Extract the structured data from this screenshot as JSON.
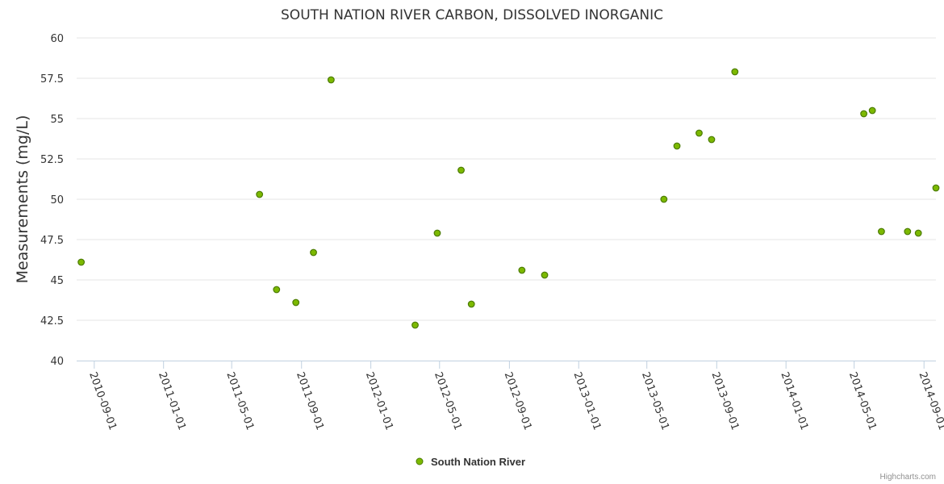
{
  "chart_data": {
    "type": "scatter",
    "title": "SOUTH NATION RIVER CARBON, DISSOLVED INORGANIC",
    "xlabel": "",
    "ylabel": "Measurements (mg/L)",
    "ylim": [
      40,
      60
    ],
    "yticks": [
      "40",
      "42.5",
      "45",
      "47.5",
      "50",
      "52.5",
      "55",
      "57.5",
      "60"
    ],
    "xlim": [
      "2010-08-01",
      "2014-09-22"
    ],
    "xticks": [
      "2010-09-01",
      "2011-01-01",
      "2011-05-01",
      "2011-09-01",
      "2012-01-01",
      "2012-05-01",
      "2012-09-01",
      "2013-01-01",
      "2013-05-01",
      "2013-09-01",
      "2014-01-01",
      "2014-05-01",
      "2014-09-01"
    ],
    "grid": true,
    "legend_position": "bottom-center",
    "series": [
      {
        "name": "South Nation River",
        "color": "#7cb900",
        "points": [
          {
            "x": "2010-08-09",
            "y": 46.1
          },
          {
            "x": "2011-06-19",
            "y": 50.3
          },
          {
            "x": "2011-07-19",
            "y": 44.4
          },
          {
            "x": "2011-08-22",
            "y": 43.6
          },
          {
            "x": "2011-09-22",
            "y": 46.7
          },
          {
            "x": "2011-10-23",
            "y": 57.4
          },
          {
            "x": "2012-03-19",
            "y": 42.2
          },
          {
            "x": "2012-04-27",
            "y": 47.9
          },
          {
            "x": "2012-06-08",
            "y": 51.8
          },
          {
            "x": "2012-06-26",
            "y": 43.5
          },
          {
            "x": "2012-09-23",
            "y": 45.6
          },
          {
            "x": "2012-11-02",
            "y": 45.3
          },
          {
            "x": "2013-05-31",
            "y": 50.0
          },
          {
            "x": "2013-06-23",
            "y": 53.3
          },
          {
            "x": "2013-08-01",
            "y": 54.1
          },
          {
            "x": "2013-08-23",
            "y": 53.7
          },
          {
            "x": "2013-10-03",
            "y": 57.9
          },
          {
            "x": "2014-05-18",
            "y": 55.3
          },
          {
            "x": "2014-06-02",
            "y": 55.5
          },
          {
            "x": "2014-06-18",
            "y": 48.0
          },
          {
            "x": "2014-08-03",
            "y": 48.0
          },
          {
            "x": "2014-08-22",
            "y": 47.9
          },
          {
            "x": "2014-09-22",
            "y": 50.7
          }
        ]
      }
    ]
  },
  "credits": "Highcharts.com"
}
